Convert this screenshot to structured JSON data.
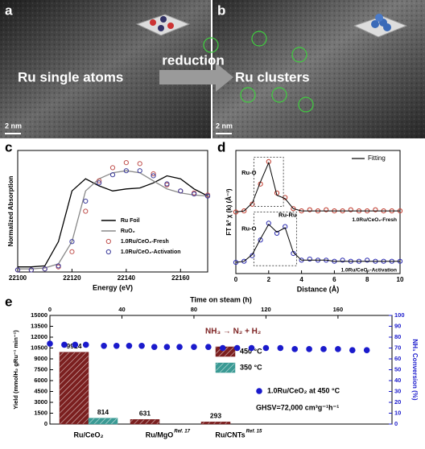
{
  "figure": {
    "panel_labels": [
      "a",
      "b",
      "c",
      "d",
      "e"
    ]
  },
  "micrographs": {
    "left_caption": "Ru single atoms",
    "right_caption": "Ru clusters",
    "arrow_label": "reduction",
    "scale_bars": [
      "2 nm",
      "2 nm"
    ]
  },
  "chart_data": [
    {
      "type": "line",
      "ylabel": "Normalized Absorption",
      "xlabel": "Energy (eV)",
      "x": [
        22100,
        22105,
        22110,
        22115,
        22120,
        22125,
        22130,
        22135,
        22140,
        22145,
        22150,
        22155,
        22160,
        22165,
        22170
      ],
      "xlim": [
        22100,
        22170
      ],
      "xticks": [
        22100,
        22120,
        22140,
        22160
      ],
      "ylim": [
        0,
        1.2
      ],
      "legend": "lower right",
      "series": [
        {
          "name": "Ru Foil",
          "color": "#000000",
          "marker": "none",
          "values": [
            0.05,
            0.05,
            0.06,
            0.3,
            0.8,
            0.92,
            0.85,
            0.8,
            0.82,
            0.83,
            0.88,
            0.95,
            0.92,
            0.82,
            0.75
          ]
        },
        {
          "name": "RuO₂",
          "color": "#888888",
          "marker": "none",
          "values": [
            0.03,
            0.03,
            0.04,
            0.08,
            0.3,
            0.8,
            0.92,
            0.98,
            1.0,
            0.98,
            0.9,
            0.82,
            0.78,
            0.76,
            0.75
          ]
        },
        {
          "name": "1.0Ru/CeO₂-Fresh",
          "color": "#c0504d",
          "marker": "circle",
          "values": [
            0.02,
            0.02,
            0.03,
            0.05,
            0.2,
            0.6,
            0.9,
            1.03,
            1.08,
            1.07,
            0.97,
            0.86,
            0.8,
            0.78,
            0.76
          ]
        },
        {
          "name": "1.0Ru/CeO₂-Activation",
          "color": "#3a3a9a",
          "marker": "circle",
          "values": [
            0.02,
            0.02,
            0.03,
            0.06,
            0.3,
            0.7,
            0.88,
            0.96,
            1.0,
            1.0,
            0.95,
            0.87,
            0.8,
            0.77,
            0.75
          ]
        }
      ]
    },
    {
      "type": "line",
      "ylabel": "FT k² χ (k) (Å⁻³)",
      "xlabel": "Distance (Å)",
      "x": [
        0,
        0.5,
        1,
        1.5,
        2,
        2.5,
        3,
        3.5,
        4,
        4.5,
        5,
        5.5,
        6,
        6.5,
        7,
        7.5,
        8,
        8.5,
        9,
        9.5,
        10
      ],
      "xlim": [
        0,
        10
      ],
      "xticks": [
        0,
        2,
        4,
        6,
        8,
        10
      ],
      "ylim": [
        0,
        1.1
      ],
      "fit_label": "Fitting",
      "series_labels": "inline",
      "annotations": [
        "Ru-O",
        "Ru-O",
        "Ru-Ru"
      ],
      "series": [
        {
          "name": "1.0Ru/CeO₂-Fresh",
          "color": "#c0392b",
          "marker": "circle",
          "values": [
            0.55,
            0.56,
            0.62,
            0.8,
            1.0,
            0.72,
            0.68,
            0.58,
            0.56,
            0.57,
            0.56,
            0.57,
            0.56,
            0.56,
            0.57,
            0.56,
            0.56,
            0.57,
            0.56,
            0.56,
            0.56
          ],
          "fit": [
            0.55,
            0.56,
            0.63,
            0.82,
            0.99,
            0.7,
            0.67,
            0.58,
            0.56,
            0.56,
            0.56,
            0.56,
            0.56,
            0.56,
            0.56,
            0.56,
            0.56,
            0.56,
            0.56,
            0.56,
            0.56
          ]
        },
        {
          "name": "1.0Ru/CeO₂-Activation",
          "color": "#2b2bb0",
          "marker": "circle",
          "values": [
            0.1,
            0.11,
            0.16,
            0.3,
            0.45,
            0.36,
            0.42,
            0.18,
            0.12,
            0.13,
            0.12,
            0.12,
            0.11,
            0.12,
            0.11,
            0.11,
            0.12,
            0.11,
            0.11,
            0.11,
            0.11
          ],
          "fit": [
            0.1,
            0.11,
            0.17,
            0.31,
            0.44,
            0.37,
            0.41,
            0.19,
            0.12,
            0.12,
            0.12,
            0.12,
            0.11,
            0.11,
            0.11,
            0.11,
            0.11,
            0.11,
            0.11,
            0.11,
            0.11
          ]
        }
      ]
    },
    {
      "type": "bar",
      "xlabel_top": "Time on steam (h)",
      "ylabel": "Yield (mmolH₂ gRu⁻¹ min⁻¹)",
      "y2label": "NH₃ Conversion (%)",
      "categories": [
        "Ru/CeO₂",
        "Ru/MgO",
        "Ru/CNTs"
      ],
      "category_refs": [
        null,
        "Ref. 17",
        "Ref. 15"
      ],
      "ylim": [
        0,
        15000
      ],
      "yticks": [
        0,
        1500,
        3000,
        4500,
        6000,
        7500,
        9000,
        10500,
        12000,
        13500,
        15000
      ],
      "y2lim": [
        0,
        100
      ],
      "y2ticks": [
        0,
        10,
        20,
        30,
        40,
        50,
        60,
        70,
        80,
        90,
        100
      ],
      "xlim": [
        0,
        190
      ],
      "xticks": [
        0,
        40,
        80,
        120,
        160
      ],
      "annotations": [
        "NH₃ → N₂ + H₂",
        "GHSV=72,000 cm³g⁻¹h⁻¹"
      ],
      "series": [
        {
          "name": "450 °C",
          "color": "#7b1f1f",
          "values": [
            9924,
            631,
            293
          ]
        },
        {
          "name": "350 °C",
          "color": "#3a9a94",
          "values": [
            814,
            null,
            null
          ]
        },
        {
          "name": "1.0Ru/CeO₂ at 450 °C",
          "type": "scatter",
          "axis": "y2",
          "color": "#1a1acc",
          "x": [
            0,
            8,
            14,
            20,
            30,
            37,
            44,
            51,
            58,
            65,
            72,
            80,
            88,
            96,
            104,
            112,
            120,
            128,
            136,
            144,
            152,
            160,
            168,
            176
          ],
          "values": [
            74,
            73,
            73,
            73,
            72,
            72,
            72,
            72,
            71,
            71,
            71,
            71,
            71,
            70,
            70,
            70,
            70,
            70,
            69,
            69,
            69,
            69,
            68,
            68
          ]
        }
      ]
    }
  ]
}
